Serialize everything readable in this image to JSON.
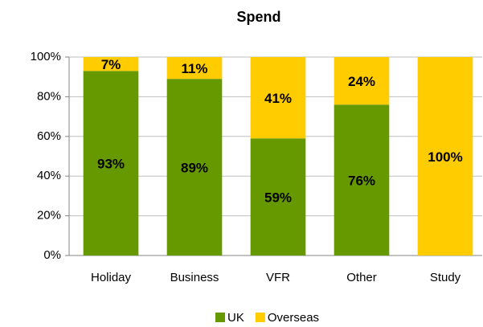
{
  "chart_data": {
    "type": "stacked_bar",
    "title": "Spend",
    "categories": [
      "Holiday",
      "Business",
      "VFR",
      "Other",
      "Study"
    ],
    "series": [
      {
        "name": "UK",
        "color": "#669900",
        "values": [
          93,
          89,
          59,
          76,
          0
        ],
        "value_labels": [
          "93%",
          "89%",
          "59%",
          "76%",
          null
        ]
      },
      {
        "name": "Overseas",
        "color": "#ffcc00",
        "values": [
          7,
          11,
          41,
          24,
          100
        ],
        "value_labels": [
          "7%",
          "11%",
          "41%",
          "24%",
          "100%"
        ]
      }
    ],
    "ylim": [
      0,
      100
    ],
    "yticks": [
      {
        "value": 0,
        "label": "0%"
      },
      {
        "value": 20,
        "label": "20%"
      },
      {
        "value": 40,
        "label": "40%"
      },
      {
        "value": 60,
        "label": "60%"
      },
      {
        "value": 80,
        "label": "80%"
      },
      {
        "value": 100,
        "label": "100%"
      }
    ],
    "grid": true,
    "legend": "bottom"
  }
}
